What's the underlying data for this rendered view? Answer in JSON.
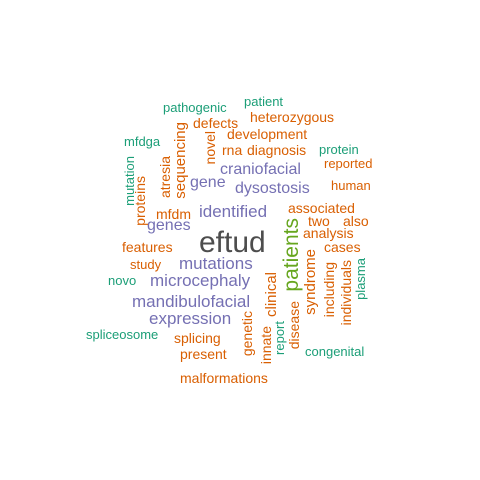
{
  "colors": {
    "teal": "#1b9e77",
    "orange": "#d95f02",
    "purple": "#7570b3",
    "green": "#66a61e",
    "dark": "#4d4d4d"
  },
  "words": {
    "eftud": "eftud",
    "patients": "patients",
    "mutations": "mutations",
    "microcephaly": "microcephaly",
    "mandibulofacial": "mandibulofacial",
    "expression": "expression",
    "identified": "identified",
    "genes": "genes",
    "gene": "gene",
    "craniofacial": "craniofacial",
    "dysostosis": "dysostosis",
    "pathogenic": "pathogenic",
    "patient": "patient",
    "heterozygous": "heterozygous",
    "defects": "defects",
    "development": "development",
    "mfdga": "mfdga",
    "rna": "rna",
    "diagnosis": "diagnosis",
    "protein": "protein",
    "reported": "reported",
    "human": "human",
    "associated": "associated",
    "two": "two",
    "also": "also",
    "analysis": "analysis",
    "cases": "cases",
    "features": "features",
    "mfdm": "mfdm",
    "study": "study",
    "novo": "novo",
    "spliceosome": "spliceosome",
    "splicing": "splicing",
    "present": "present",
    "malformations": "malformations",
    "congenital": "congenital",
    "mutation": "mutation",
    "proteins": "proteins",
    "atresia": "atresia",
    "sequencing": "sequencing",
    "novel": "novel",
    "syndrome": "syndrome",
    "including": "including",
    "individuals": "individuals",
    "plasma": "plasma",
    "clinical": "clinical",
    "genetic": "genetic",
    "innate": "innate",
    "report": "report",
    "disease": "disease"
  }
}
